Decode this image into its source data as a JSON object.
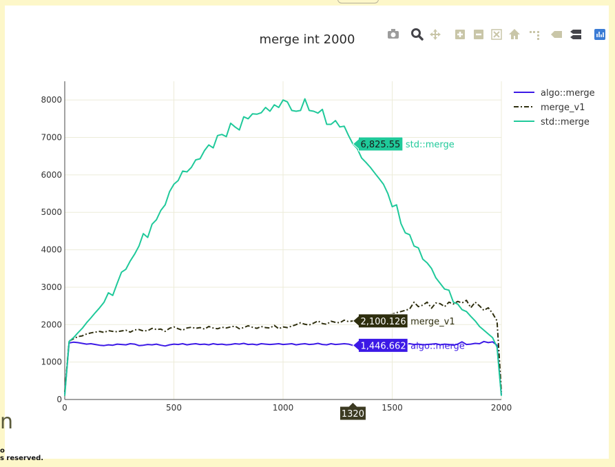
{
  "page": {
    "footer_glyph": "n",
    "footer_line1": "o",
    "footer_line2": "s reserved."
  },
  "modebar": {
    "buttons": [
      {
        "name": "camera-icon",
        "color": "#9c9c9c"
      },
      {
        "name": "zoom-icon",
        "color": "#44444a"
      },
      {
        "name": "pan-icon",
        "color": "#c9c6a8"
      },
      {
        "name": "zoom-in-icon",
        "color": "#c9c6a8"
      },
      {
        "name": "zoom-out-icon",
        "color": "#c9c6a8"
      },
      {
        "name": "autoscale-icon",
        "color": "#c9c6a8"
      },
      {
        "name": "home-icon",
        "color": "#c9c6a8"
      },
      {
        "name": "spike-lines-icon",
        "color": "#c9c6a8"
      },
      {
        "name": "hover-closest-icon",
        "color": "#c9c6a8"
      },
      {
        "name": "hover-compare-icon",
        "color": "#44444a"
      },
      {
        "name": "plotly-logo-icon",
        "color": "#3a7bd5"
      }
    ]
  },
  "chart_data": {
    "type": "line",
    "title": "merge int 2000",
    "xlabel": "",
    "ylabel": "",
    "xlim": [
      0,
      2000
    ],
    "ylim": [
      0,
      8500
    ],
    "xticks": [
      0,
      500,
      1000,
      1500,
      2000
    ],
    "xtick_labels": [
      "0",
      "500",
      "1000",
      "1500",
      "2000"
    ],
    "yticks": [
      0,
      1000,
      2000,
      3000,
      4000,
      5000,
      6000,
      7000,
      8000
    ],
    "ytick_labels": [
      "0",
      "1000",
      "2000",
      "3000",
      "4000",
      "5000",
      "6000",
      "7000",
      "8000"
    ],
    "grid": true,
    "legend_position": "top-right",
    "series": [
      {
        "name": "algo::merge",
        "color": "#3c19e6",
        "dash": "solid",
        "x": [
          0,
          20,
          40,
          60,
          80,
          100,
          120,
          140,
          160,
          180,
          200,
          220,
          240,
          260,
          280,
          300,
          320,
          340,
          360,
          380,
          400,
          420,
          440,
          460,
          480,
          500,
          520,
          540,
          560,
          580,
          600,
          620,
          640,
          660,
          680,
          700,
          720,
          740,
          760,
          780,
          800,
          820,
          840,
          860,
          880,
          900,
          920,
          940,
          960,
          980,
          1000,
          1020,
          1040,
          1060,
          1080,
          1100,
          1120,
          1140,
          1160,
          1180,
          1200,
          1220,
          1240,
          1260,
          1280,
          1300,
          1320,
          1340,
          1360,
          1380,
          1400,
          1420,
          1440,
          1460,
          1480,
          1500,
          1520,
          1540,
          1560,
          1580,
          1600,
          1620,
          1640,
          1660,
          1680,
          1700,
          1720,
          1740,
          1760,
          1780,
          1800,
          1820,
          1840,
          1860,
          1880,
          1900,
          1920,
          1940,
          1960,
          1980,
          2000
        ],
        "y": [
          150,
          1510,
          1530,
          1520,
          1500,
          1480,
          1490,
          1470,
          1450,
          1440,
          1460,
          1450,
          1480,
          1470,
          1460,
          1490,
          1480,
          1440,
          1450,
          1470,
          1460,
          1480,
          1450,
          1430,
          1460,
          1480,
          1470,
          1490,
          1460,
          1480,
          1490,
          1470,
          1480,
          1460,
          1490,
          1470,
          1480,
          1460,
          1470,
          1490,
          1480,
          1500,
          1470,
          1480,
          1460,
          1490,
          1480,
          1470,
          1480,
          1490,
          1470,
          1480,
          1490,
          1460,
          1480,
          1490,
          1470,
          1480,
          1500,
          1470,
          1460,
          1490,
          1470,
          1480,
          1490,
          1480,
          1447,
          1450,
          1470,
          1480,
          1460,
          1490,
          1480,
          1470,
          1480,
          1490,
          1460,
          1470,
          1480,
          1490,
          1470,
          1480,
          1460,
          1470,
          1480,
          1490,
          1460,
          1480,
          1470,
          1450,
          1480,
          1540,
          1470,
          1480,
          1500,
          1490,
          1550,
          1520,
          1540,
          1450,
          120
        ]
      },
      {
        "name": "merge_v1",
        "color": "#2e2e0e",
        "dash": "dashdot",
        "x": [
          0,
          20,
          40,
          60,
          80,
          100,
          120,
          140,
          160,
          180,
          200,
          220,
          240,
          260,
          280,
          300,
          320,
          340,
          360,
          380,
          400,
          420,
          440,
          460,
          480,
          500,
          520,
          540,
          560,
          580,
          600,
          620,
          640,
          660,
          680,
          700,
          720,
          740,
          760,
          780,
          800,
          820,
          840,
          860,
          880,
          900,
          920,
          940,
          960,
          980,
          1000,
          1020,
          1040,
          1060,
          1080,
          1100,
          1120,
          1140,
          1160,
          1180,
          1200,
          1220,
          1240,
          1260,
          1280,
          1300,
          1320,
          1340,
          1360,
          1380,
          1400,
          1420,
          1440,
          1460,
          1480,
          1500,
          1520,
          1540,
          1560,
          1580,
          1600,
          1620,
          1640,
          1660,
          1680,
          1700,
          1720,
          1740,
          1760,
          1780,
          1800,
          1820,
          1840,
          1860,
          1880,
          1900,
          1920,
          1940,
          1960,
          1980,
          2000
        ],
        "y": [
          200,
          1560,
          1620,
          1680,
          1700,
          1750,
          1780,
          1800,
          1820,
          1790,
          1840,
          1820,
          1810,
          1830,
          1850,
          1800,
          1860,
          1870,
          1830,
          1840,
          1900,
          1870,
          1880,
          1820,
          1900,
          1940,
          1890,
          1850,
          1910,
          1930,
          1900,
          1920,
          1880,
          1950,
          1910,
          1890,
          1930,
          1910,
          1940,
          1960,
          1890,
          1920,
          1970,
          1930,
          1900,
          1950,
          1920,
          1910,
          1980,
          1890,
          1940,
          1920,
          1960,
          2000,
          2050,
          2010,
          1990,
          2040,
          2100,
          2030,
          2010,
          2090,
          2060,
          2050,
          2120,
          2080,
          2100,
          2110,
          2130,
          2150,
          2200,
          2180,
          2250,
          2230,
          2270,
          2280,
          2320,
          2350,
          2380,
          2420,
          2600,
          2480,
          2520,
          2600,
          2440,
          2580,
          2560,
          2480,
          2600,
          2550,
          2620,
          2580,
          2650,
          2450,
          2600,
          2500,
          2380,
          2450,
          2300,
          2100,
          200
        ]
      },
      {
        "name": "std::merge",
        "color": "#1fc99a",
        "dash": "solid",
        "x": [
          0,
          20,
          40,
          60,
          80,
          100,
          120,
          140,
          160,
          180,
          200,
          220,
          240,
          260,
          280,
          300,
          320,
          340,
          360,
          380,
          400,
          420,
          440,
          460,
          480,
          500,
          520,
          540,
          560,
          580,
          600,
          620,
          640,
          660,
          680,
          700,
          720,
          740,
          760,
          780,
          800,
          820,
          840,
          860,
          880,
          900,
          920,
          940,
          960,
          980,
          1000,
          1020,
          1040,
          1060,
          1080,
          1100,
          1120,
          1140,
          1160,
          1180,
          1200,
          1220,
          1240,
          1260,
          1280,
          1300,
          1320,
          1340,
          1360,
          1380,
          1400,
          1420,
          1440,
          1460,
          1480,
          1500,
          1520,
          1540,
          1560,
          1580,
          1600,
          1620,
          1640,
          1660,
          1680,
          1700,
          1720,
          1740,
          1760,
          1780,
          1800,
          1820,
          1840,
          1860,
          1880,
          1900,
          1920,
          1940,
          1960,
          1980,
          2000
        ],
        "y": [
          100,
          1550,
          1650,
          1780,
          1900,
          2050,
          2180,
          2320,
          2450,
          2600,
          2850,
          2780,
          3100,
          3400,
          3480,
          3700,
          3880,
          4100,
          4430,
          4330,
          4680,
          4800,
          5050,
          5200,
          5550,
          5750,
          5850,
          6100,
          6080,
          6200,
          6400,
          6430,
          6650,
          6800,
          6720,
          7050,
          7080,
          7020,
          7380,
          7280,
          7200,
          7550,
          7500,
          7630,
          7620,
          7660,
          7800,
          7700,
          7870,
          7800,
          8000,
          7950,
          7720,
          7700,
          7720,
          8030,
          7720,
          7700,
          7650,
          7750,
          7350,
          7350,
          7450,
          7280,
          7300,
          7050,
          6825,
          6700,
          6450,
          6330,
          6200,
          6050,
          5900,
          5750,
          5500,
          5150,
          5200,
          4700,
          4450,
          4400,
          4100,
          4050,
          3750,
          3650,
          3500,
          3250,
          3100,
          2950,
          2920,
          2600,
          2550,
          2400,
          2350,
          2220,
          2100,
          1950,
          1850,
          1750,
          1650,
          1400,
          100
        ]
      }
    ],
    "hover": {
      "x_label": "1320",
      "points": [
        {
          "series": "std::merge",
          "value": 6825.55,
          "value_label": "6,825.55",
          "name_label": "std::merge"
        },
        {
          "series": "merge_v1",
          "value": 2100.126,
          "value_label": "2,100.126",
          "name_label": "merge_v1"
        },
        {
          "series": "algo::merge",
          "value": 1446.662,
          "value_label": "1,446.662",
          "name_label": "algo::merge"
        }
      ]
    }
  }
}
